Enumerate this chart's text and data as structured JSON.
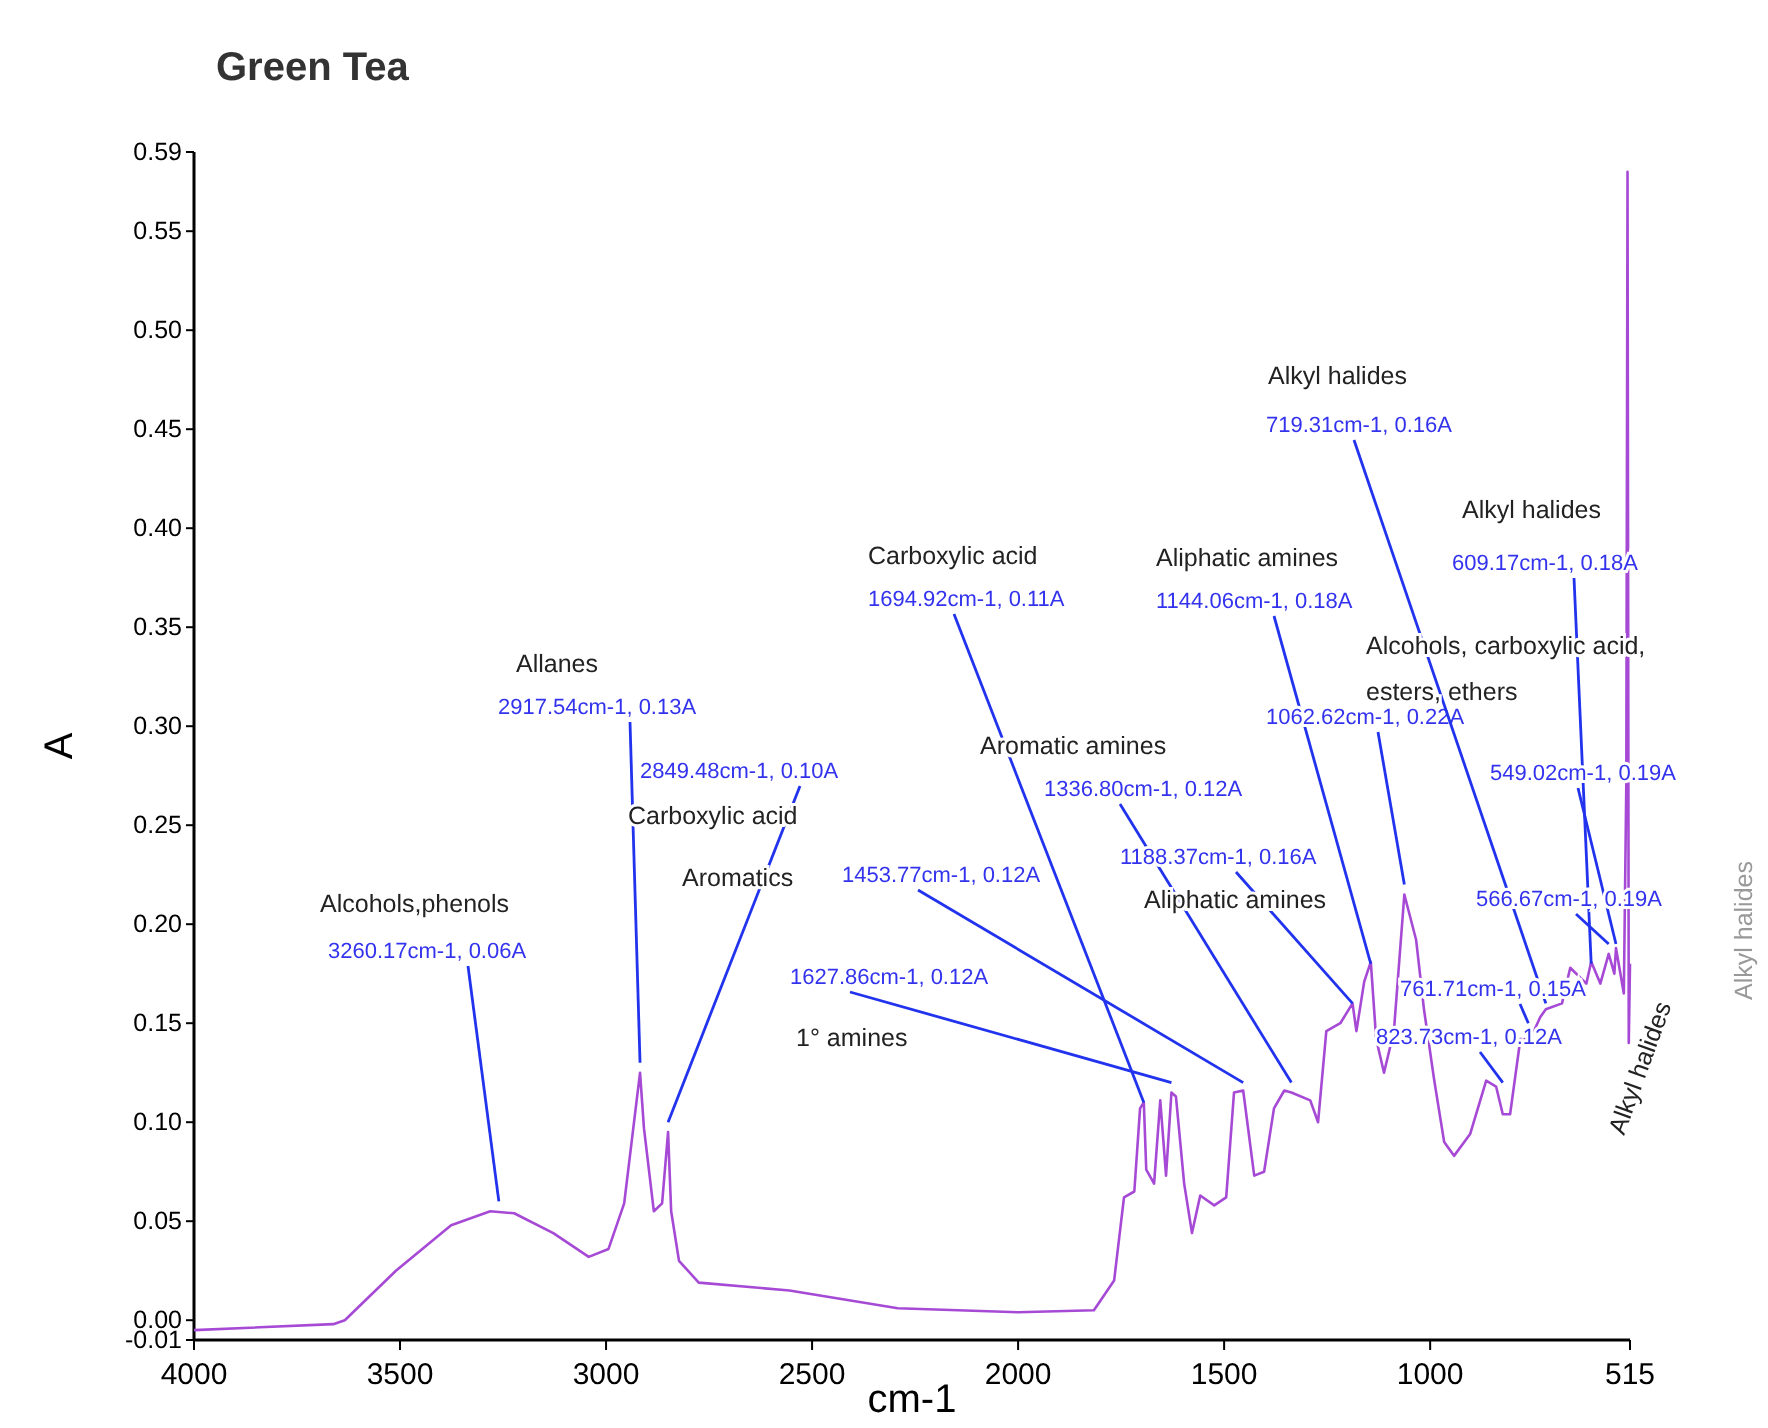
{
  "chart_data": {
    "type": "line",
    "title": "Green Tea",
    "xlabel": "cm-1",
    "ylabel": "A",
    "xlim": [
      4000,
      515
    ],
    "xticks": [
      4000,
      3500,
      3000,
      2500,
      2000,
      1500,
      1000,
      515
    ],
    "ylim": [
      -0.01,
      0.59
    ],
    "yticks": [
      {
        "value": -0.01,
        "label": "-0.01"
      },
      {
        "value": 0,
        "label": "0.00"
      },
      {
        "value": 0.05,
        "label": "0.05"
      },
      {
        "value": 0.1,
        "label": "0.10"
      },
      {
        "value": 0.15,
        "label": "0.15"
      },
      {
        "value": 0.2,
        "label": "0.20"
      },
      {
        "value": 0.25,
        "label": "0.25"
      },
      {
        "value": 0.3,
        "label": "0.30"
      },
      {
        "value": 0.35,
        "label": "0.35"
      },
      {
        "value": 0.4,
        "label": "0.40"
      },
      {
        "value": 0.45,
        "label": "0.45"
      },
      {
        "value": 0.5,
        "label": "0.50"
      },
      {
        "value": 0.55,
        "label": "0.55"
      },
      {
        "value": 0.59,
        "label": "0.59"
      }
    ],
    "grid": false,
    "marker": "none",
    "line_style": "solid",
    "series": [
      {
        "color": "#a64ad6",
        "x": [
          4000,
          3662,
          3634,
          3510,
          3376,
          3281,
          3223,
          3128,
          3042,
          2994,
          2956,
          2917.54,
          2908,
          2884,
          2864,
          2849.48,
          2842,
          2823,
          2775,
          2555,
          2292,
          2000,
          1816,
          1767,
          1743,
          1718,
          1704,
          1694.92,
          1689,
          1670,
          1655,
          1641,
          1627.86,
          1617,
          1597,
          1578,
          1558,
          1524,
          1495,
          1476,
          1453.77,
          1427,
          1403,
          1379,
          1354,
          1336.8,
          1291,
          1272,
          1252,
          1218,
          1188.37,
          1179,
          1160,
          1144.06,
          1131,
          1112,
          1088,
          1062.62,
          1034,
          1015,
          990,
          966,
          942,
          903,
          864,
          840,
          823.73,
          806,
          781,
          757,
          733,
          719.31,
          680,
          660,
          621,
          609.17,
          587,
          566.67,
          553,
          549.02,
          530,
          524,
          521,
          518,
          515
        ],
        "values": [
          -0.005,
          -0.002,
          0,
          0.025,
          0.048,
          0.055,
          0.054,
          0.044,
          0.032,
          0.036,
          0.059,
          0.125,
          0.097,
          0.055,
          0.059,
          0.095,
          0.055,
          0.03,
          0.019,
          0.015,
          0.006,
          0.004,
          0.005,
          0.02,
          0.062,
          0.065,
          0.107,
          0.11,
          0.076,
          0.069,
          0.111,
          0.073,
          0.115,
          0.113,
          0.069,
          0.044,
          0.063,
          0.058,
          0.062,
          0.115,
          0.116,
          0.073,
          0.075,
          0.107,
          0.116,
          0.115,
          0.111,
          0.1,
          0.146,
          0.15,
          0.16,
          0.146,
          0.171,
          0.181,
          0.142,
          0.125,
          0.146,
          0.215,
          0.192,
          0.157,
          0.121,
          0.09,
          0.083,
          0.094,
          0.121,
          0.118,
          0.104,
          0.104,
          0.142,
          0.142,
          0.153,
          0.157,
          0.16,
          0.178,
          0.17,
          0.181,
          0.17,
          0.185,
          0.175,
          0.188,
          0.165,
          0.27,
          0.58,
          0.14,
          0.18
        ]
      }
    ],
    "annotations": [
      "Alcohols,phenols",
      "Allanes",
      "Carboxylic acid",
      "Aromatics",
      "1° amines",
      "Carboxylic acid",
      "Aromatic amines",
      "Aliphatic amines",
      "Aliphatic amines",
      "Alkyl halides",
      "Alkyl halides",
      "Alcohols, carboxylic acid,",
      "esters, ethers",
      "Alkyl halides",
      "Alkyl halides",
      {
        "text": "3260.17cm-1, 0.06A",
        "x": 3260.17,
        "y": 0.06
      },
      {
        "text": "2917.54cm-1, 0.13A",
        "x": 2917.54,
        "y": 0.13
      },
      {
        "text": "2849.48cm-1, 0.10A",
        "x": 2849.48,
        "y": 0.1
      },
      {
        "text": "1694.92cm-1, 0.11A",
        "x": 1694.92,
        "y": 0.11
      },
      {
        "text": "1627.86cm-1, 0.12A",
        "x": 1627.86,
        "y": 0.12
      },
      {
        "text": "1453.77cm-1, 0.12A",
        "x": 1453.77,
        "y": 0.12
      },
      {
        "text": "1336.80cm-1, 0.12A",
        "x": 1336.8,
        "y": 0.12
      },
      {
        "text": "1188.37cm-1, 0.16A",
        "x": 1188.37,
        "y": 0.16
      },
      {
        "text": "1144.06cm-1, 0.18A",
        "x": 1144.06,
        "y": 0.18
      },
      {
        "text": "1062.62cm-1, 0.22A",
        "x": 1062.62,
        "y": 0.22
      },
      {
        "text": "719.31cm-1, 0.16A",
        "x": 719.31,
        "y": 0.16
      },
      {
        "text": "609.17cm-1, 0.18A",
        "x": 609.17,
        "y": 0.18
      },
      {
        "text": "549.02cm-1, 0.19A",
        "x": 549.02,
        "y": 0.19
      },
      {
        "text": "566.67cm-1, 0.19A",
        "x": 566.67,
        "y": 0.19
      },
      {
        "text": "761.71cm-1, 0.15A",
        "x": 761.71,
        "y": 0.15
      },
      {
        "text": "823.73cm-1, 0.12A",
        "x": 823.73,
        "y": 0.12
      }
    ]
  }
}
